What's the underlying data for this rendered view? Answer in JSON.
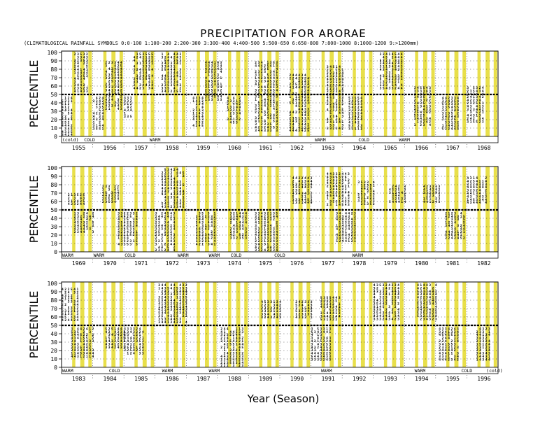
{
  "title": "PRECIPITATION FOR ARORAE",
  "subtitle": "(CLIMATOLOGICAL RAINFALL SYMBOLS 0:0-100   1:100-200   2:200-300   3:300-400   4:400-500   5:500-650   6:650-800   7:800-1000   8:1000-1200   9:>1200mm)",
  "xlabel": "Year (Season)",
  "colors": {
    "band": "#e8df4a",
    "axis": "#000000",
    "grid": "#000000"
  },
  "chart_data": [
    {
      "type": "other",
      "ylabel": "PERCENTILE",
      "ylim": [
        0,
        100
      ],
      "yticks": [
        "0",
        "10",
        "20",
        "30",
        "40",
        "50",
        "60",
        "70",
        "80",
        "90",
        "100"
      ],
      "median_line": 50,
      "years": [
        "1955",
        "1956",
        "1957",
        "1958",
        "1959",
        "1960",
        "1961",
        "1962",
        "1963",
        "1964",
        "1965",
        "1966",
        "1967",
        "1968"
      ],
      "enso_labels": [
        {
          "text": "(cold)",
          "year": 1955.0
        },
        {
          "text": "COLD",
          "year": 1955.7
        },
        {
          "text": "WARM",
          "year": 1957.8
        },
        {
          "text": "WARM",
          "year": 1963.1
        },
        {
          "text": "COLD",
          "year": 1964.5
        },
        {
          "text": "WARM",
          "year": 1965.8
        }
      ],
      "wet_bars": [
        [
          1955.4,
          1955.8,
          50,
          100
        ],
        [
          1956.4,
          1956.9,
          30,
          90
        ],
        [
          1957.3,
          1957.9,
          55,
          100
        ],
        [
          1958.2,
          1958.8,
          50,
          100
        ],
        [
          1959.6,
          1960.1,
          40,
          90
        ],
        [
          1961.2,
          1961.9,
          5,
          90
        ],
        [
          1962.3,
          1962.9,
          5,
          75
        ],
        [
          1963.5,
          1964.0,
          5,
          85
        ],
        [
          1965.2,
          1965.9,
          55,
          100
        ],
        [
          1966.3,
          1966.8,
          10,
          60
        ],
        [
          1968.0,
          1968.5,
          15,
          60
        ]
      ],
      "dry_bars": [
        [
          1955.0,
          1955.3,
          0,
          48
        ],
        [
          1956.0,
          1956.3,
          5,
          48
        ],
        [
          1957.0,
          1957.2,
          20,
          48
        ],
        [
          1959.2,
          1959.5,
          10,
          48
        ],
        [
          1960.3,
          1960.7,
          15,
          48
        ],
        [
          1964.2,
          1964.6,
          5,
          48
        ],
        [
          1967.2,
          1967.7,
          5,
          48
        ]
      ]
    },
    {
      "type": "other",
      "ylabel": "PERCENTILE",
      "ylim": [
        0,
        100
      ],
      "yticks": [
        "0",
        "10",
        "20",
        "30",
        "40",
        "50",
        "60",
        "70",
        "80",
        "90",
        "100"
      ],
      "median_line": 50,
      "years": [
        "1969",
        "1970",
        "1971",
        "1972",
        "1973",
        "1974",
        "1975",
        "1976",
        "1977",
        "1978",
        "1979",
        "1980",
        "1981",
        "1982"
      ],
      "enso_labels": [
        {
          "text": "WARM",
          "year": 1969.0
        },
        {
          "text": "WARM",
          "year": 1970.0
        },
        {
          "text": "COLD",
          "year": 1971.0
        },
        {
          "text": "WARM",
          "year": 1972.7
        },
        {
          "text": "WARM",
          "year": 1973.7
        },
        {
          "text": "COLD",
          "year": 1974.4
        },
        {
          "text": "COLD",
          "year": 1975.8
        },
        {
          "text": "WARM",
          "year": 1978.3
        }
      ],
      "wet_bars": [
        [
          1969.2,
          1969.7,
          55,
          70
        ],
        [
          1970.3,
          1970.8,
          55,
          80
        ],
        [
          1972.2,
          1972.9,
          50,
          100
        ],
        [
          1976.4,
          1977.0,
          55,
          90
        ],
        [
          1977.5,
          1978.2,
          55,
          95
        ],
        [
          1978.5,
          1979.0,
          55,
          85
        ],
        [
          1979.5,
          1980.0,
          55,
          80
        ],
        [
          1980.6,
          1981.1,
          55,
          80
        ],
        [
          1982.0,
          1982.6,
          55,
          90
        ]
      ],
      "dry_bars": [
        [
          1969.4,
          1970.0,
          20,
          48
        ],
        [
          1970.8,
          1971.4,
          5,
          48
        ],
        [
          1972.0,
          1972.6,
          0,
          48
        ],
        [
          1973.3,
          1973.9,
          5,
          48
        ],
        [
          1974.4,
          1974.9,
          15,
          48
        ],
        [
          1975.2,
          1975.9,
          0,
          48
        ],
        [
          1977.8,
          1978.4,
          10,
          48
        ],
        [
          1981.3,
          1981.9,
          15,
          48
        ]
      ]
    },
    {
      "type": "other",
      "ylabel": "PERCENTILE",
      "ylim": [
        0,
        100
      ],
      "yticks": [
        "0",
        "10",
        "20",
        "30",
        "40",
        "50",
        "60",
        "70",
        "80",
        "90",
        "100"
      ],
      "median_line": 50,
      "years": [
        "1983",
        "1984",
        "1985",
        "1986",
        "1987",
        "1988",
        "1989",
        "1990",
        "1991",
        "1992",
        "1993",
        "1994",
        "1995",
        "1996"
      ],
      "enso_labels": [
        {
          "text": "WARM",
          "year": 1983.0
        },
        {
          "text": "COLD",
          "year": 1984.5
        },
        {
          "text": "WARM",
          "year": 1986.2
        },
        {
          "text": "WARM",
          "year": 1987.7
        },
        {
          "text": "WARM",
          "year": 1991.3
        },
        {
          "text": "WARM",
          "year": 1994.3
        },
        {
          "text": "COLD",
          "year": 1995.8
        },
        {
          "text": "(cold)",
          "year": 1996.6
        }
      ],
      "wet_bars": [
        [
          1983.0,
          1983.5,
          55,
          95
        ],
        [
          1986.1,
          1987.0,
          50,
          100
        ],
        [
          1989.4,
          1990.0,
          55,
          80
        ],
        [
          1990.5,
          1991.0,
          55,
          80
        ],
        [
          1991.3,
          1991.9,
          55,
          85
        ],
        [
          1993.0,
          1993.8,
          55,
          100
        ],
        [
          1994.4,
          1995.0,
          55,
          100
        ]
      ],
      "dry_bars": [
        [
          1983.3,
          1984.0,
          10,
          48
        ],
        [
          1984.4,
          1985.0,
          20,
          48
        ],
        [
          1985.0,
          1985.6,
          15,
          48
        ],
        [
          1988.1,
          1988.8,
          0,
          48
        ],
        [
          1991.0,
          1991.6,
          5,
          48
        ],
        [
          1995.1,
          1995.7,
          5,
          48
        ],
        [
          1996.3,
          1996.7,
          5,
          48
        ]
      ]
    }
  ]
}
